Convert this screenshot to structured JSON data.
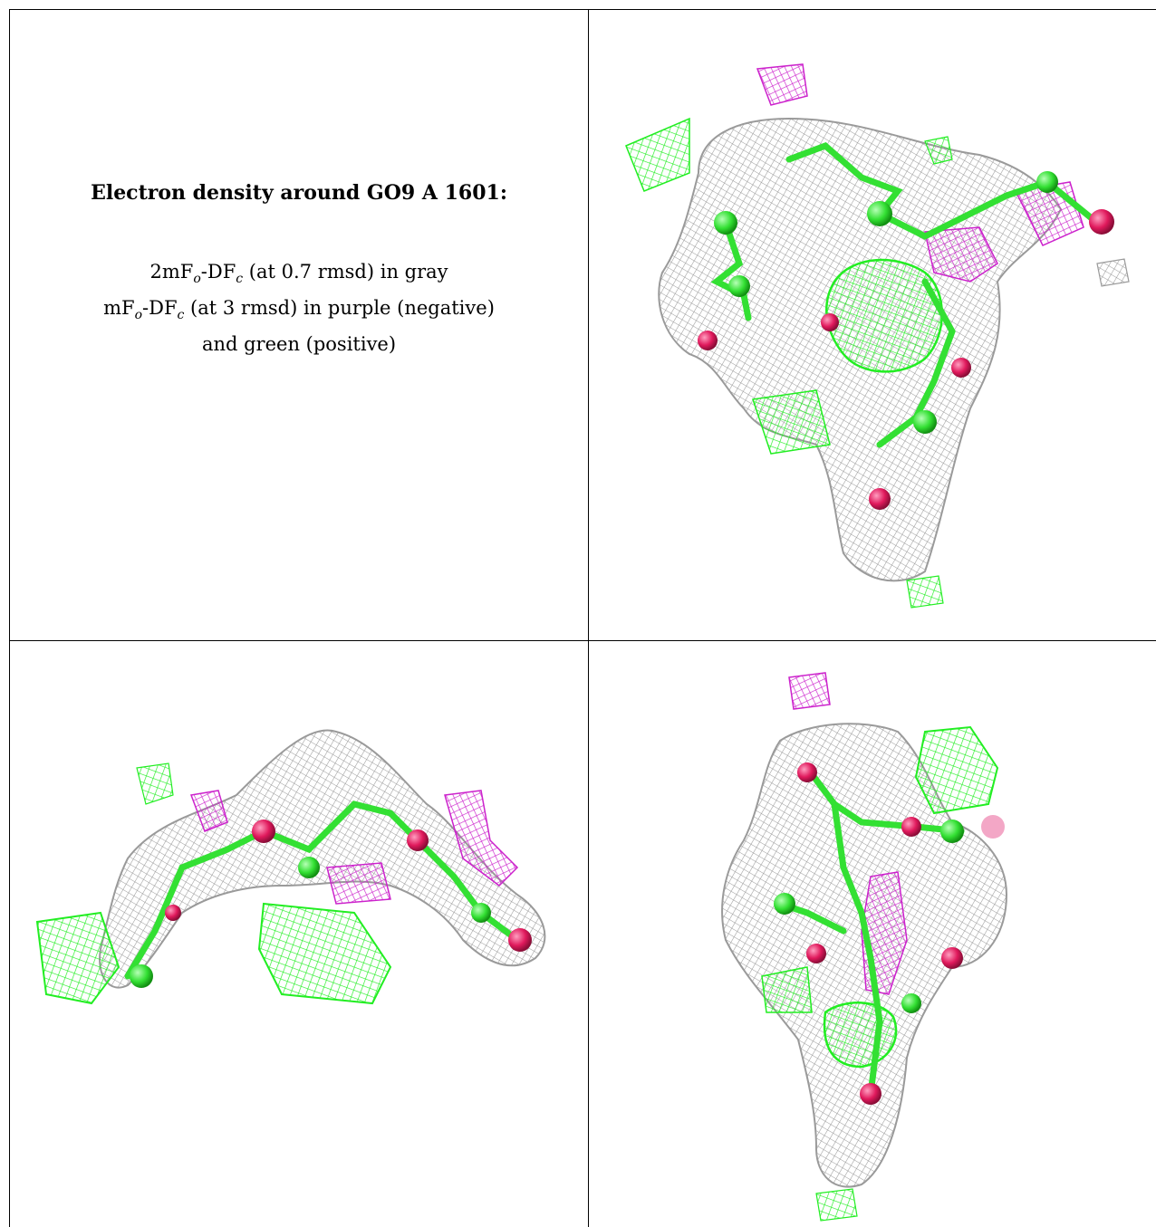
{
  "caption": {
    "title": "Electron density around GO9 A 1601:",
    "line1_a": "2mF",
    "line1_sub_o": "o",
    "line1_b": "-DF",
    "line1_sub_c": "c",
    "line1_c": " (at 0.7 rmsd) in gray",
    "line2_a": "mF",
    "line2_sub_o": "o",
    "line2_b": "-DF",
    "line2_sub_c": "c",
    "line2_c": " (at 3 rmsd) in purple (negative)",
    "line3": "and green (positive)"
  },
  "colors": {
    "gray_mesh": "#9a9a9a",
    "green_mesh": "#22ee22",
    "purple_mesh": "#cc22cc",
    "carbon_atom": "#33e033",
    "oxygen_atom": "#e0195c",
    "grid_line": "#000000"
  },
  "panels": [
    {
      "id": "view-top-right",
      "description_icon": "electron-density-render"
    },
    {
      "id": "view-bottom-left",
      "description_icon": "electron-density-render"
    },
    {
      "id": "view-bottom-right",
      "description_icon": "electron-density-render"
    }
  ]
}
